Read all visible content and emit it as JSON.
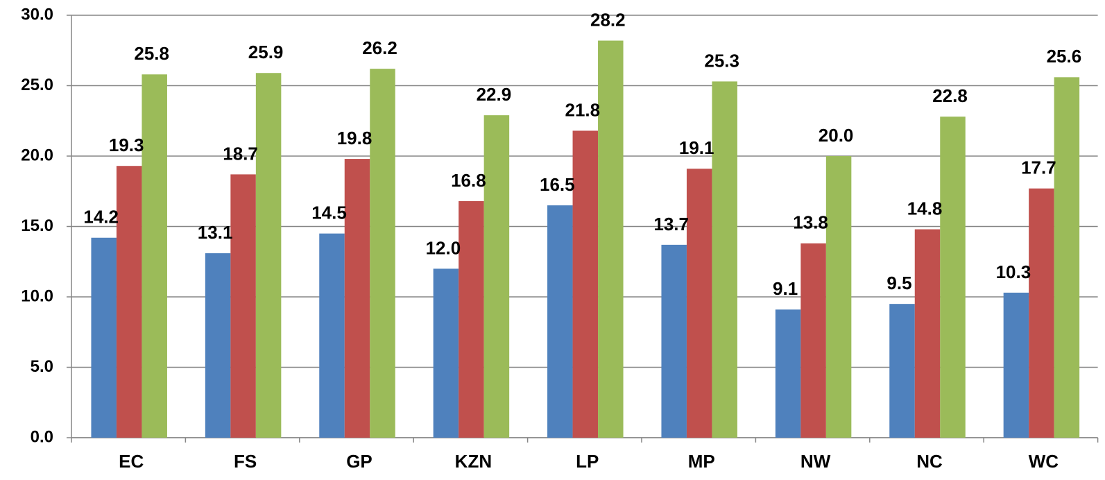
{
  "chart_data": {
    "type": "bar",
    "categories": [
      "EC",
      "FS",
      "GP",
      "KZN",
      "LP",
      "MP",
      "NW",
      "NC",
      "WC"
    ],
    "series": [
      {
        "color": "#4f81bd",
        "values": [
          14.2,
          13.1,
          14.5,
          12.0,
          16.5,
          13.7,
          9.1,
          9.5,
          10.3
        ],
        "value_labels": [
          "14.2",
          "13.1",
          "14.5",
          "12.0",
          "16.5",
          "13.7",
          "9.1",
          "9.5",
          "10.3"
        ]
      },
      {
        "color": "#c0504d",
        "values": [
          19.3,
          18.7,
          19.8,
          16.8,
          21.8,
          19.1,
          13.8,
          14.8,
          17.7
        ],
        "value_labels": [
          "19.3",
          "18.7",
          "19.8",
          "16.8",
          "21.8",
          "19.1",
          "13.8",
          "14.8",
          "17.7"
        ]
      },
      {
        "color": "#9bbb59",
        "values": [
          25.8,
          25.9,
          26.2,
          22.9,
          28.2,
          25.3,
          20.0,
          22.8,
          25.6
        ],
        "value_labels": [
          "25.8",
          "25.9",
          "26.2",
          "22.9",
          "28.2",
          "25.3",
          "20.0",
          "22.8",
          "25.6"
        ]
      }
    ],
    "ylim": [
      0,
      30
    ],
    "yticks": [
      {
        "value": 0,
        "label": "0.0"
      },
      {
        "value": 5,
        "label": "5.0"
      },
      {
        "value": 10,
        "label": "10.0"
      },
      {
        "value": 15,
        "label": "15.0"
      },
      {
        "value": 20,
        "label": "20.0"
      },
      {
        "value": 25,
        "label": "25.0"
      },
      {
        "value": 30,
        "label": "30.0"
      }
    ],
    "grid": true
  }
}
